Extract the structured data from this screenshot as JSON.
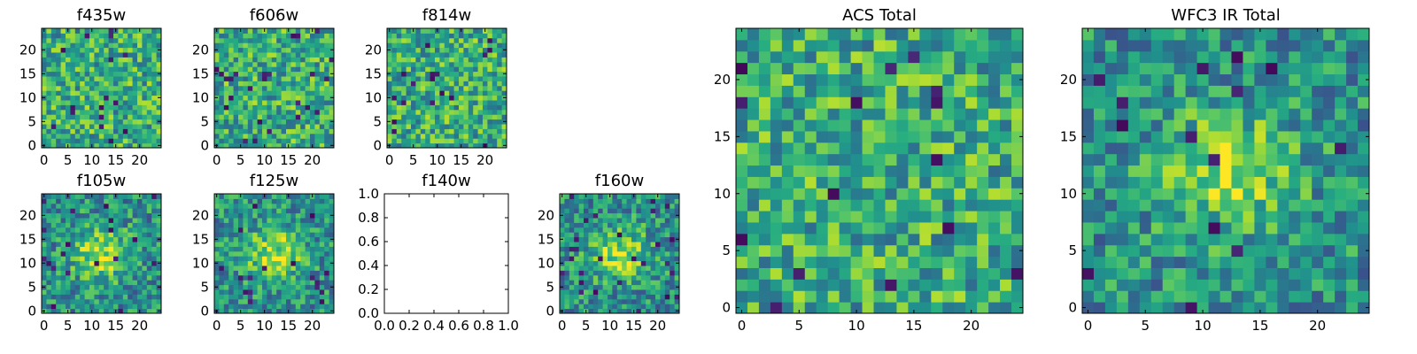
{
  "chart_data": [
    {
      "type": "heatmap",
      "title": "f435w",
      "xticks": [
        "0",
        "5",
        "10",
        "15",
        "20"
      ],
      "yticks": [
        "0",
        "5",
        "10",
        "15",
        "20"
      ],
      "xlim": [
        -0.5,
        24.5
      ],
      "ylim": [
        -0.5,
        24.5
      ],
      "grid_size": 25,
      "colormap": "viridis",
      "pattern": "noise",
      "seed": 11,
      "has_data": true
    },
    {
      "type": "heatmap",
      "title": "f606w",
      "xticks": [
        "0",
        "5",
        "10",
        "15",
        "20"
      ],
      "yticks": [
        "0",
        "5",
        "10",
        "15",
        "20"
      ],
      "xlim": [
        -0.5,
        24.5
      ],
      "ylim": [
        -0.5,
        24.5
      ],
      "grid_size": 25,
      "colormap": "viridis",
      "pattern": "noise",
      "seed": 23,
      "has_data": true
    },
    {
      "type": "heatmap",
      "title": "f814w",
      "xticks": [
        "0",
        "5",
        "10",
        "15",
        "20"
      ],
      "yticks": [
        "0",
        "5",
        "10",
        "15",
        "20"
      ],
      "xlim": [
        -0.5,
        24.5
      ],
      "ylim": [
        -0.5,
        24.5
      ],
      "grid_size": 25,
      "colormap": "viridis",
      "pattern": "noise",
      "seed": 37,
      "has_data": true
    },
    {
      "type": "heatmap",
      "title": "f105w",
      "xticks": [
        "0",
        "5",
        "10",
        "15",
        "20"
      ],
      "yticks": [
        "0",
        "5",
        "10",
        "15",
        "20"
      ],
      "xlim": [
        -0.5,
        24.5
      ],
      "ylim": [
        -0.5,
        24.5
      ],
      "grid_size": 25,
      "colormap": "viridis",
      "pattern": "blob",
      "seed": 41,
      "has_data": true
    },
    {
      "type": "heatmap",
      "title": "f125w",
      "xticks": [
        "0",
        "5",
        "10",
        "15",
        "20"
      ],
      "yticks": [
        "0",
        "5",
        "10",
        "15",
        "20"
      ],
      "xlim": [
        -0.5,
        24.5
      ],
      "ylim": [
        -0.5,
        24.5
      ],
      "grid_size": 25,
      "colormap": "viridis",
      "pattern": "blob",
      "seed": 53,
      "has_data": true
    },
    {
      "type": "empty",
      "title": "f140w",
      "xticks": [
        "0.0",
        "0.2",
        "0.4",
        "0.6",
        "0.8",
        "1.0"
      ],
      "yticks": [
        "0.0",
        "0.2",
        "0.4",
        "0.6",
        "0.8",
        "1.0"
      ],
      "xlim": [
        0,
        1
      ],
      "ylim": [
        0,
        1
      ],
      "has_data": false
    },
    {
      "type": "heatmap",
      "title": "f160w",
      "xticks": [
        "0",
        "5",
        "10",
        "15",
        "20"
      ],
      "yticks": [
        "0",
        "5",
        "10",
        "15",
        "20"
      ],
      "xlim": [
        -0.5,
        24.5
      ],
      "ylim": [
        -0.5,
        24.5
      ],
      "grid_size": 25,
      "colormap": "viridis",
      "pattern": "blob",
      "seed": 67,
      "has_data": true
    },
    {
      "type": "heatmap",
      "title": "ACS Total",
      "xticks": [
        "0",
        "5",
        "10",
        "15",
        "20"
      ],
      "yticks": [
        "0",
        "5",
        "10",
        "15",
        "20"
      ],
      "xlim": [
        -0.5,
        24.5
      ],
      "ylim": [
        -0.5,
        24.5
      ],
      "grid_size": 25,
      "colormap": "viridis",
      "pattern": "noise",
      "seed": 79,
      "has_data": true
    },
    {
      "type": "heatmap",
      "title": "WFC3 IR Total",
      "xticks": [
        "0",
        "5",
        "10",
        "15",
        "20"
      ],
      "yticks": [
        "0",
        "5",
        "10",
        "15",
        "20"
      ],
      "xlim": [
        -0.5,
        24.5
      ],
      "ylim": [
        -0.5,
        24.5
      ],
      "grid_size": 25,
      "colormap": "viridis",
      "pattern": "blob",
      "seed": 97,
      "has_data": true
    }
  ]
}
